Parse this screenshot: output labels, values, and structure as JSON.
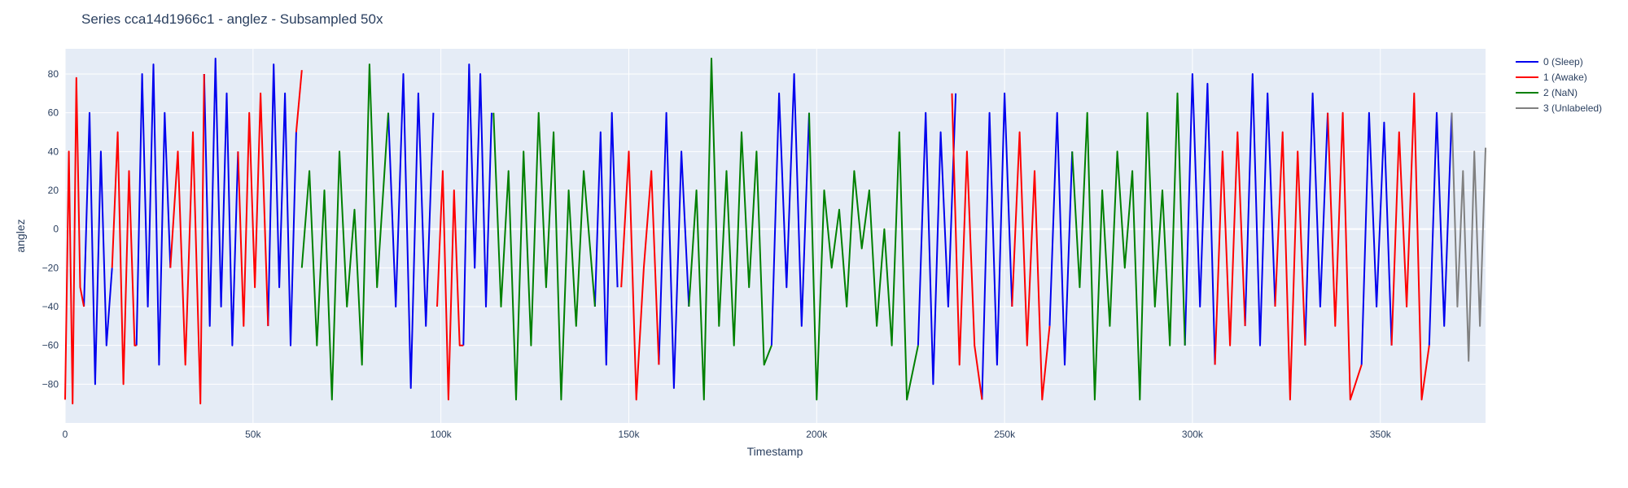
{
  "chart_data": {
    "type": "line",
    "title": "Series cca14d1966c1 - anglez - Subsampled 50x",
    "xlabel": "Timestamp",
    "ylabel": "anglez",
    "xlim": [
      0,
      378000
    ],
    "ylim": [
      -100,
      93
    ],
    "x_ticks": [
      0,
      50000,
      100000,
      150000,
      200000,
      250000,
      300000,
      350000
    ],
    "x_tick_labels": [
      "0",
      "50k",
      "100k",
      "150k",
      "200k",
      "250k",
      "300k",
      "350k"
    ],
    "y_ticks": [
      -80,
      -60,
      -40,
      -20,
      0,
      20,
      40,
      60,
      80
    ],
    "y_tick_labels": [
      "−80",
      "−60",
      "−40",
      "−20",
      "0",
      "20",
      "40",
      "60",
      "80"
    ],
    "grid": true,
    "legend_position": "top-right",
    "background_color": "#e5ecf6",
    "series": [
      {
        "name": "0 (Sleep)",
        "color": "#0000ee",
        "segments": [
          {
            "x": [
              5000,
              6500,
              8000,
              9500,
              11000,
              12500
            ],
            "y": [
              -40,
              60,
              -80,
              40,
              -60,
              -20
            ]
          },
          {
            "x": [
              19000,
              20500,
              22000,
              23500,
              25000,
              26500,
              28000
            ],
            "y": [
              -60,
              80,
              -40,
              85,
              -70,
              60,
              -20
            ]
          },
          {
            "x": [
              37000,
              38500,
              40000,
              41500,
              43000,
              44500,
              46000
            ],
            "y": [
              80,
              -50,
              88,
              -40,
              70,
              -60,
              40
            ]
          },
          {
            "x": [
              54000,
              55500,
              57000,
              58500,
              60000,
              61500
            ],
            "y": [
              -50,
              85,
              -30,
              70,
              -60,
              50
            ]
          },
          {
            "x": [
              86000,
              88000,
              90000,
              92000,
              94000,
              96000,
              98000
            ],
            "y": [
              60,
              -40,
              80,
              -82,
              70,
              -50,
              60
            ]
          },
          {
            "x": [
              106000,
              107500,
              109000,
              110500,
              112000,
              113500
            ],
            "y": [
              -60,
              85,
              -20,
              80,
              -40,
              60
            ]
          },
          {
            "x": [
              141000,
              142500,
              144000,
              145500,
              147000
            ],
            "y": [
              -40,
              50,
              -70,
              60,
              -30
            ]
          },
          {
            "x": [
              158000,
              160000,
              162000,
              164000,
              166000
            ],
            "y": [
              -70,
              60,
              -82,
              40,
              -40
            ]
          },
          {
            "x": [
              188000,
              190000,
              192000,
              194000,
              196000,
              198000
            ],
            "y": [
              -60,
              70,
              -30,
              80,
              -50,
              60
            ]
          },
          {
            "x": [
              227000,
              229000,
              231000,
              233000,
              235000,
              237000
            ],
            "y": [
              -60,
              60,
              -80,
              50,
              -40,
              70
            ]
          },
          {
            "x": [
              244000,
              246000,
              248000,
              250000,
              252000
            ],
            "y": [
              -88,
              60,
              -70,
              70,
              -40
            ]
          },
          {
            "x": [
              262000,
              264000,
              266000,
              268000
            ],
            "y": [
              -50,
              60,
              -70,
              40
            ]
          },
          {
            "x": [
              298000,
              300000,
              302000,
              304000,
              306000
            ],
            "y": [
              -60,
              80,
              -40,
              75,
              -70
            ]
          },
          {
            "x": [
              314000,
              316000,
              318000,
              320000,
              322000
            ],
            "y": [
              -50,
              80,
              -60,
              70,
              -40
            ]
          },
          {
            "x": [
              330000,
              332000,
              334000,
              336000
            ],
            "y": [
              -60,
              70,
              -40,
              60
            ]
          },
          {
            "x": [
              345000,
              347000,
              349000,
              351000,
              353000
            ],
            "y": [
              -70,
              60,
              -40,
              55,
              -60
            ]
          },
          {
            "x": [
              363000,
              365000,
              367000,
              369000
            ],
            "y": [
              -60,
              60,
              -50,
              60
            ]
          }
        ]
      },
      {
        "name": "1 (Awake)",
        "color": "#ff0000",
        "segments": [
          {
            "x": [
              0,
              1000,
              2000,
              3000,
              4000,
              5000
            ],
            "y": [
              -88,
              40,
              -90,
              78,
              -30,
              -40
            ]
          },
          {
            "x": [
              12500,
              14000,
              15500,
              17000,
              18500,
              19000
            ],
            "y": [
              -20,
              50,
              -80,
              30,
              -60,
              -60
            ]
          },
          {
            "x": [
              28000,
              30000,
              32000,
              34000,
              36000,
              37000
            ],
            "y": [
              -20,
              40,
              -70,
              50,
              -90,
              80
            ]
          },
          {
            "x": [
              46000,
              47500,
              49000,
              50500,
              52000,
              54000
            ],
            "y": [
              40,
              -50,
              60,
              -30,
              70,
              -50
            ]
          },
          {
            "x": [
              61500,
              63000
            ],
            "y": [
              50,
              82
            ]
          },
          {
            "x": [
              99000,
              100500,
              102000,
              103500,
              105000,
              106000
            ],
            "y": [
              -40,
              30,
              -88,
              20,
              -60,
              -60
            ]
          },
          {
            "x": [
              148000,
              150000,
              152000,
              154000,
              156000,
              158000
            ],
            "y": [
              -30,
              40,
              -88,
              -20,
              30,
              -70
            ]
          },
          {
            "x": [
              236000,
              238000,
              240000,
              242000,
              244000
            ],
            "y": [
              70,
              -70,
              40,
              -60,
              -88
            ]
          },
          {
            "x": [
              252000,
              254000,
              256000,
              258000,
              260000,
              262000
            ],
            "y": [
              -40,
              50,
              -60,
              30,
              -88,
              -50
            ]
          },
          {
            "x": [
              306000,
              308000,
              310000,
              312000,
              314000
            ],
            "y": [
              -70,
              40,
              -60,
              50,
              -50
            ]
          },
          {
            "x": [
              322000,
              324000,
              326000,
              328000,
              330000
            ],
            "y": [
              -40,
              50,
              -88,
              40,
              -60
            ]
          },
          {
            "x": [
              336000,
              338000,
              340000,
              342000,
              345000
            ],
            "y": [
              60,
              -50,
              60,
              -88,
              -70
            ]
          },
          {
            "x": [
              353000,
              355000,
              357000,
              359000,
              361000,
              363000
            ],
            "y": [
              -60,
              50,
              -40,
              70,
              -88,
              -60
            ]
          }
        ]
      },
      {
        "name": "2 (NaN)",
        "color": "#008000",
        "segments": [
          {
            "x": [
              63000,
              65000,
              67000,
              69000,
              71000,
              73000,
              75000,
              77000,
              79000,
              81000,
              83000,
              86000
            ],
            "y": [
              -20,
              30,
              -60,
              20,
              -88,
              40,
              -40,
              10,
              -70,
              85,
              -30,
              60
            ]
          },
          {
            "x": [
              114000,
              116000,
              118000,
              120000,
              122000,
              124000,
              126000,
              128000,
              130000,
              132000,
              134000,
              136000,
              138000,
              141000
            ],
            "y": [
              60,
              -40,
              30,
              -88,
              40,
              -60,
              60,
              -30,
              50,
              -88,
              20,
              -50,
              30,
              -40
            ]
          },
          {
            "x": [
              166000,
              168000,
              170000,
              172000,
              174000,
              176000,
              178000,
              180000,
              182000,
              184000,
              186000,
              188000
            ],
            "y": [
              -40,
              20,
              -88,
              88,
              -50,
              30,
              -60,
              50,
              -30,
              40,
              -70,
              -60
            ]
          },
          {
            "x": [
              198000,
              200000,
              202000,
              204000,
              206000,
              208000,
              210000,
              212000,
              214000,
              216000,
              218000,
              220000,
              222000,
              224000,
              227000
            ],
            "y": [
              60,
              -88,
              20,
              -20,
              10,
              -40,
              30,
              -10,
              20,
              -50,
              0,
              -60,
              50,
              -88,
              -60
            ]
          },
          {
            "x": [
              268000,
              270000,
              272000,
              274000,
              276000,
              278000,
              280000,
              282000,
              284000,
              286000,
              288000,
              290000,
              292000,
              294000,
              296000,
              298000
            ],
            "y": [
              40,
              -30,
              60,
              -88,
              20,
              -50,
              40,
              -20,
              30,
              -88,
              60,
              -40,
              20,
              -60,
              70,
              -60
            ]
          }
        ]
      },
      {
        "name": "3 (Unlabeled)",
        "color": "#808080",
        "segments": [
          {
            "x": [
              369000,
              370500,
              372000,
              373500,
              375000,
              376500,
              378000
            ],
            "y": [
              60,
              -40,
              30,
              -68,
              40,
              -50,
              42
            ]
          }
        ]
      }
    ]
  }
}
